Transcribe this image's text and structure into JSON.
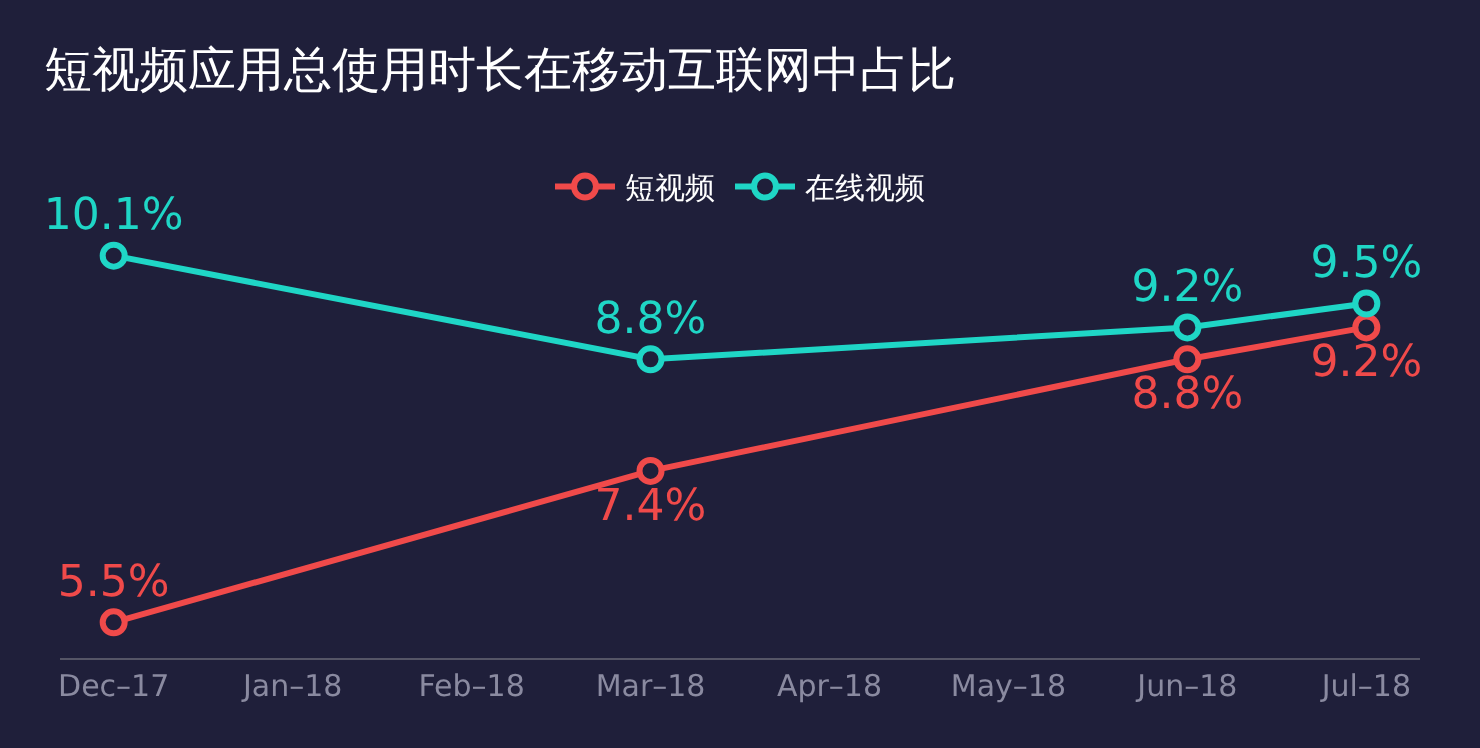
{
  "chart_data": {
    "type": "line",
    "title": "短视频应用总使用时长在移动互联网中占比",
    "categories": [
      "Dec–17",
      "Jan–18",
      "Feb–18",
      "Mar–18",
      "Apr–18",
      "May–18",
      "Jun–18",
      "Jul–18"
    ],
    "series": [
      {
        "name": "短视频",
        "color": "#f04a4a",
        "values": [
          5.5,
          null,
          null,
          7.4,
          null,
          null,
          8.8,
          9.2
        ],
        "value_labels": [
          "5.5%",
          null,
          null,
          "7.4%",
          null,
          null,
          "8.8%",
          "9.2%"
        ]
      },
      {
        "name": "在线视频",
        "color": "#1fd6c6",
        "values": [
          10.1,
          null,
          null,
          8.8,
          null,
          null,
          9.2,
          9.5
        ],
        "value_labels": [
          "10.1%",
          null,
          null,
          "8.8%",
          null,
          null,
          "9.2%",
          "9.5%"
        ]
      }
    ],
    "legend": "top",
    "marker": "circle",
    "grid": false,
    "tick_labels": "x"
  }
}
